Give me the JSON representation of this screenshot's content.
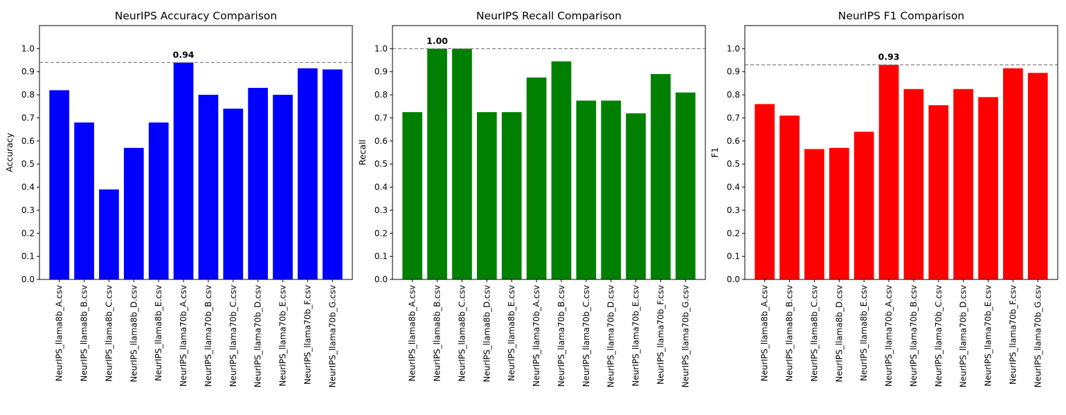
{
  "chart_data": [
    {
      "type": "bar",
      "title": "NeurIPS Accuracy Comparison",
      "xlabel": "",
      "ylabel": "Accuracy",
      "color": "#0000ff",
      "ylim": [
        0,
        1.1
      ],
      "yticks": [
        "0.0",
        "0.1",
        "0.2",
        "0.3",
        "0.4",
        "0.5",
        "0.6",
        "0.7",
        "0.8",
        "0.9",
        "1.0"
      ],
      "categories": [
        "NeurIPS_llama8b_A.csv",
        "NeurIPS_llama8b_B.csv",
        "NeurIPS_llama8b_C.csv",
        "NeurIPS_llama8b_D.csv",
        "NeurIPS_llama8b_E.csv",
        "NeurIPS_llama70b_A.csv",
        "NeurIPS_llama70b_B.csv",
        "NeurIPS_llama70b_C.csv",
        "NeurIPS_llama70b_D.csv",
        "NeurIPS_llama70b_E.csv",
        "NeurIPS_llama70b_F.csv",
        "NeurIPS_llama70b_G.csv"
      ],
      "values": [
        0.82,
        0.68,
        0.39,
        0.57,
        0.68,
        0.94,
        0.8,
        0.74,
        0.83,
        0.8,
        0.915,
        0.91
      ],
      "reference_line": 0.94,
      "annotation": {
        "index": 5,
        "label": "0.94"
      },
      "grid": false
    },
    {
      "type": "bar",
      "title": "NeurIPS Recall Comparison",
      "xlabel": "",
      "ylabel": "Recall",
      "color": "#008000",
      "ylim": [
        0,
        1.1
      ],
      "yticks": [
        "0.0",
        "0.1",
        "0.2",
        "0.3",
        "0.4",
        "0.5",
        "0.6",
        "0.7",
        "0.8",
        "0.9",
        "1.0"
      ],
      "categories": [
        "NeurIPS_llama8b_A.csv",
        "NeurIPS_llama8b_B.csv",
        "NeurIPS_llama8b_C.csv",
        "NeurIPS_llama8b_D.csv",
        "NeurIPS_llama8b_E.csv",
        "NeurIPS_llama70b_A.csv",
        "NeurIPS_llama70b_B.csv",
        "NeurIPS_llama70b_C.csv",
        "NeurIPS_llama70b_D.csv",
        "NeurIPS_llama70b_E.csv",
        "NeurIPS_llama70b_F.csv",
        "NeurIPS_llama70b_G.csv"
      ],
      "values": [
        0.725,
        1.0,
        1.0,
        0.725,
        0.725,
        0.875,
        0.945,
        0.775,
        0.775,
        0.72,
        0.89,
        0.81
      ],
      "reference_line": 1.0,
      "annotation": {
        "index": 1,
        "label": "1.00"
      },
      "grid": false
    },
    {
      "type": "bar",
      "title": "NeurIPS F1 Comparison",
      "xlabel": "",
      "ylabel": "F1",
      "color": "#ff0000",
      "ylim": [
        0,
        1.1
      ],
      "yticks": [
        "0.0",
        "0.1",
        "0.2",
        "0.3",
        "0.4",
        "0.5",
        "0.6",
        "0.7",
        "0.8",
        "0.9",
        "1.0"
      ],
      "categories": [
        "NeurIPS_llama8b_A.csv",
        "NeurIPS_llama8b_B.csv",
        "NeurIPS_llama8b_C.csv",
        "NeurIPS_llama8b_D.csv",
        "NeurIPS_llama8b_E.csv",
        "NeurIPS_llama70b_A.csv",
        "NeurIPS_llama70b_B.csv",
        "NeurIPS_llama70b_C.csv",
        "NeurIPS_llama70b_D.csv",
        "NeurIPS_llama70b_E.csv",
        "NeurIPS_llama70b_F.csv",
        "NeurIPS_llama70b_G.csv"
      ],
      "values": [
        0.76,
        0.71,
        0.565,
        0.57,
        0.64,
        0.93,
        0.825,
        0.755,
        0.825,
        0.79,
        0.915,
        0.895
      ],
      "reference_line": 0.93,
      "annotation": {
        "index": 5,
        "label": "0.93"
      },
      "grid": false
    }
  ]
}
